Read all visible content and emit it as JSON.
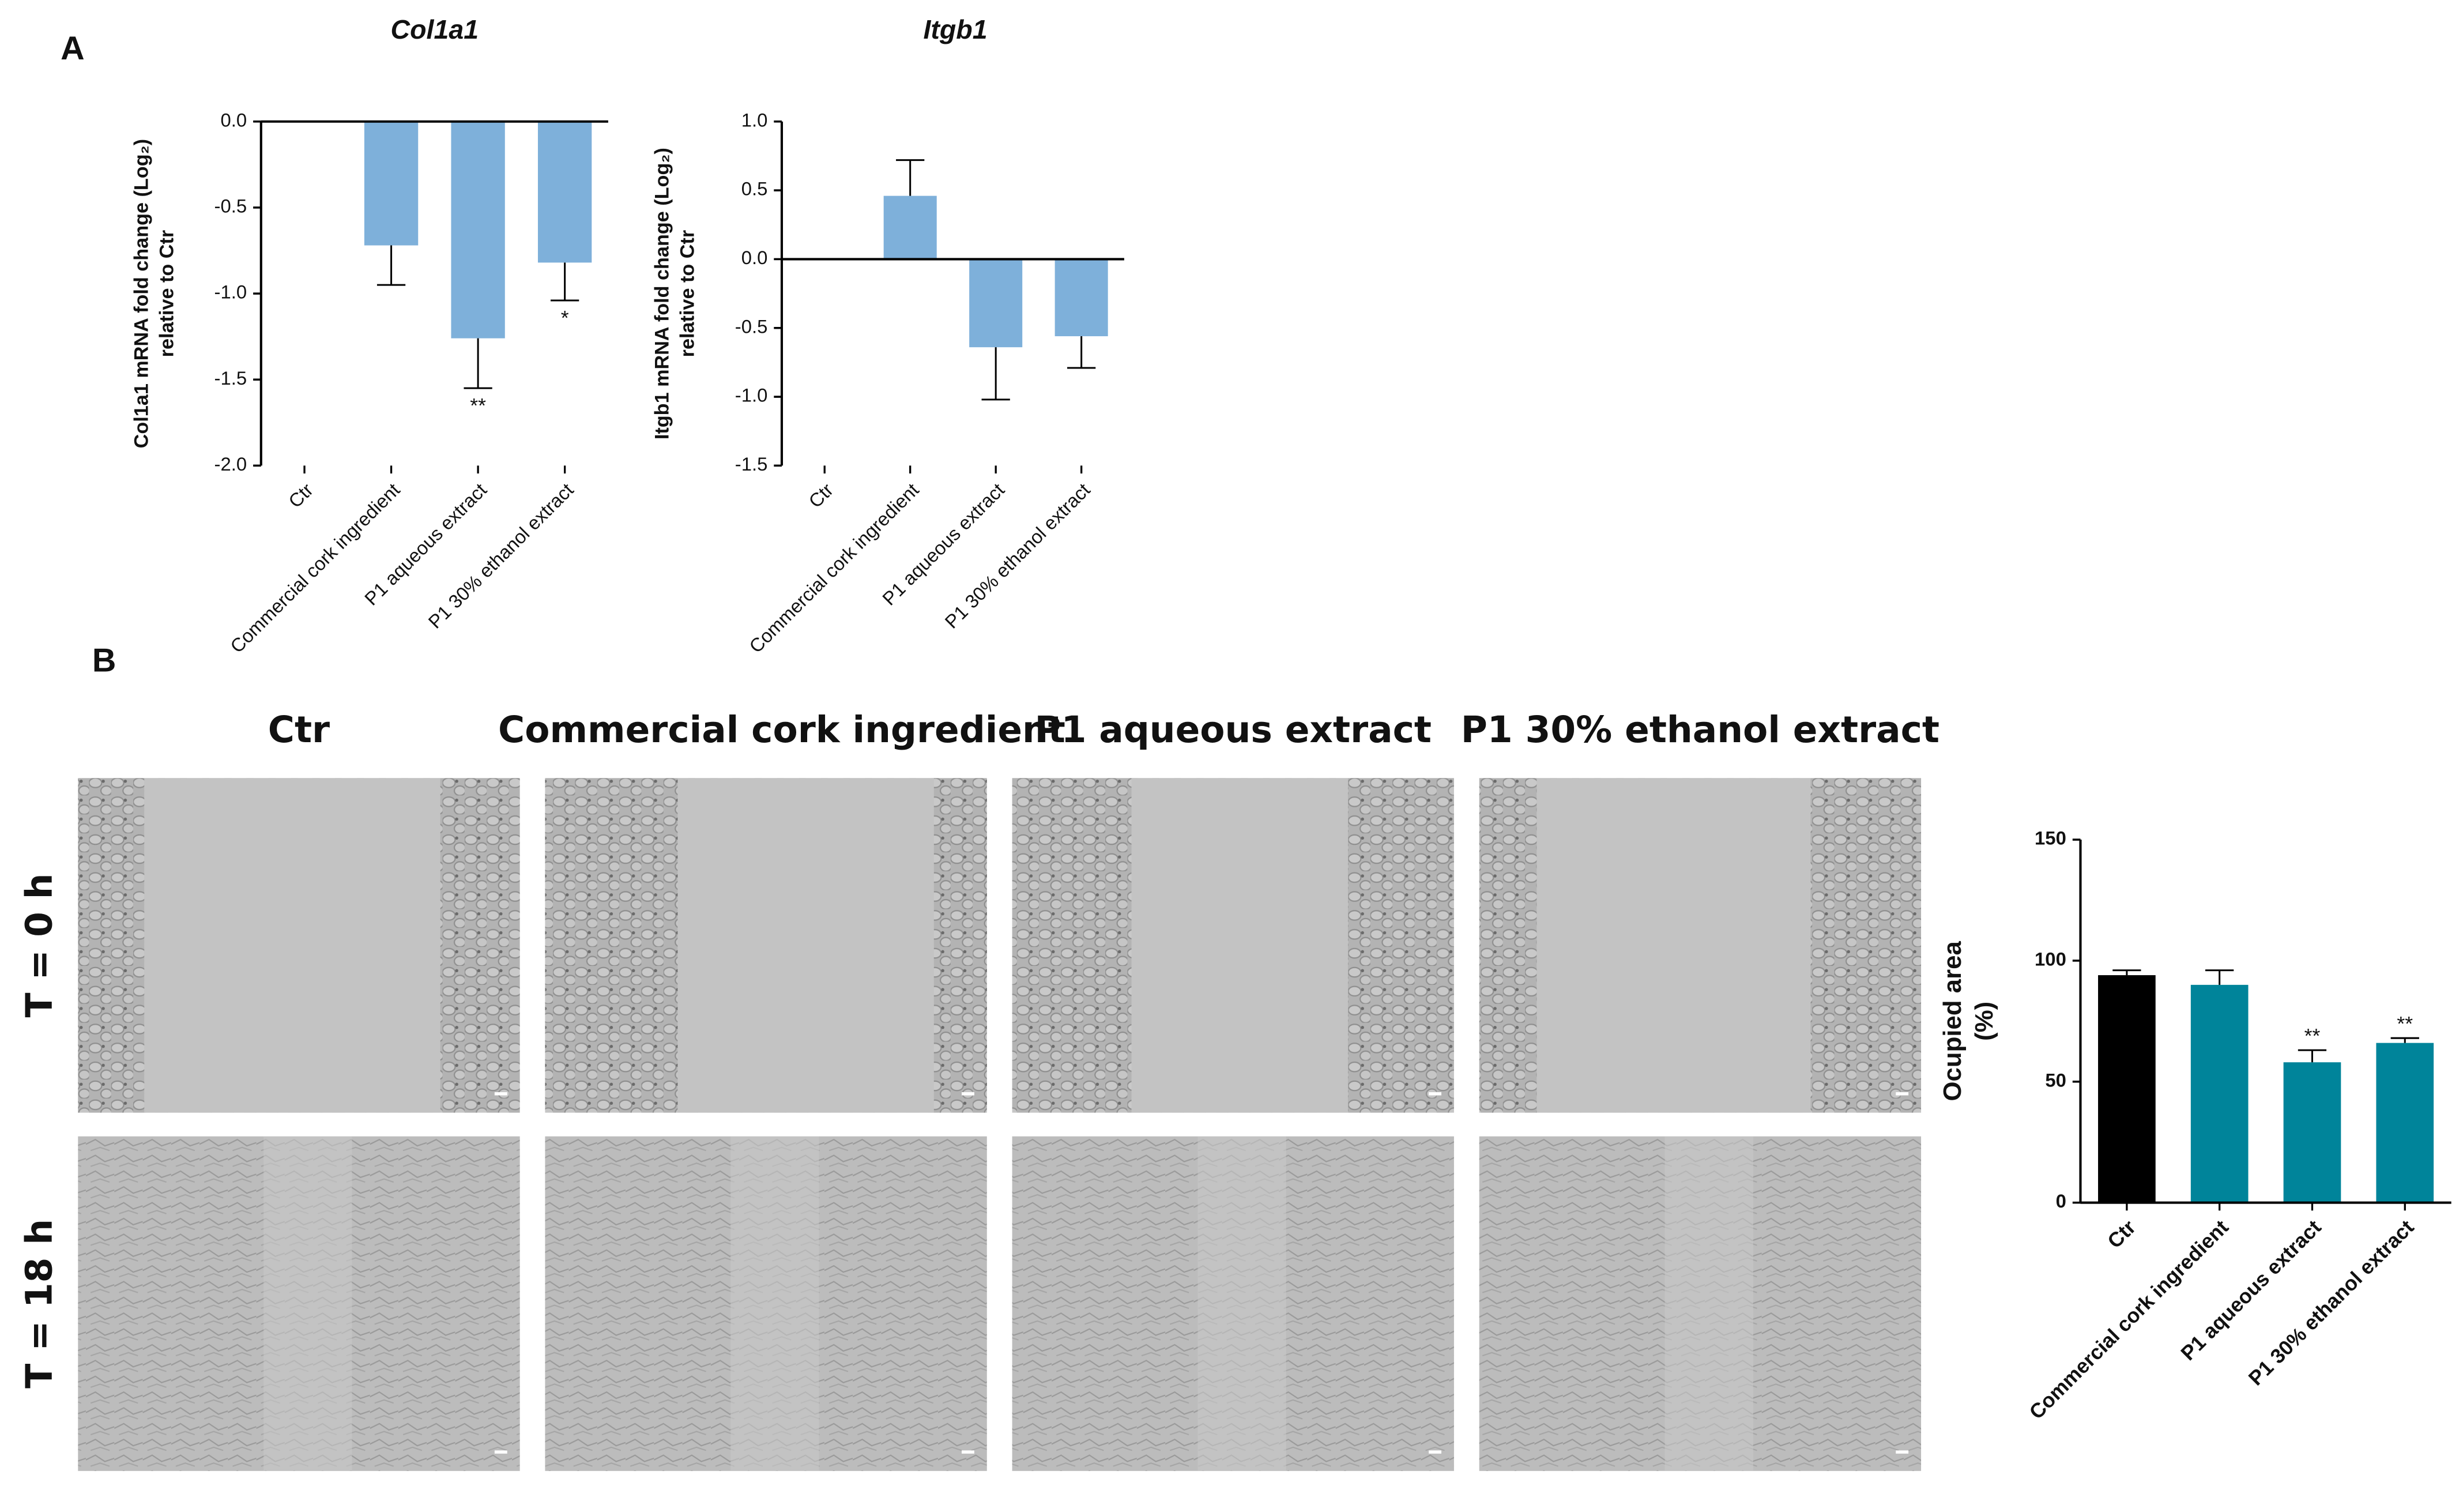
{
  "panel_labels": [
    "A",
    "B"
  ],
  "chart_data": [
    {
      "type": "bar",
      "title": "Col1a1",
      "y_label": [
        "Col1a1 mRNA fold change (Log₂)",
        "relative to Ctr"
      ],
      "categories": [
        "Ctr",
        "Commercial cork ingredient",
        "P1 aqueous extract",
        "P1 30% ethanol extract"
      ],
      "values": [
        0,
        -0.72,
        -1.26,
        -0.82
      ],
      "errors": [
        null,
        0.23,
        0.29,
        0.22
      ],
      "annotations": [
        null,
        null,
        "**",
        "*"
      ],
      "colors": [
        "#7eb0da",
        "#7eb0da",
        "#7eb0da",
        "#7eb0da"
      ],
      "ylim": [
        -2,
        0
      ],
      "yticks": [
        {
          "value": 0,
          "label": "0.0"
        },
        {
          "value": -0.5,
          "label": "-0.5"
        },
        {
          "value": -1,
          "label": "-1.0"
        },
        {
          "value": -1.5,
          "label": "-1.5"
        },
        {
          "value": -2,
          "label": "-2.0"
        }
      ]
    },
    {
      "type": "bar",
      "title": "Itgb1",
      "y_label": [
        "Itgb1 mRNA fold change (Log₂)",
        "relative to Ctr"
      ],
      "categories": [
        "Ctr",
        "Commercial cork ingredient",
        "P1 aqueous extract",
        "P1 30% ethanol extract"
      ],
      "values": [
        0,
        0.46,
        -0.64,
        -0.56
      ],
      "errors": [
        null,
        0.26,
        0.38,
        0.23
      ],
      "annotations": [
        null,
        null,
        null,
        null
      ],
      "colors": [
        "#7eb0da",
        "#7eb0da",
        "#7eb0da",
        "#7eb0da"
      ],
      "ylim": [
        -1.5,
        1
      ],
      "yticks": [
        {
          "value": 1,
          "label": "1.0"
        },
        {
          "value": 0.5,
          "label": "0.5"
        },
        {
          "value": 0,
          "label": "0.0"
        },
        {
          "value": -0.5,
          "label": "-0.5"
        },
        {
          "value": -1,
          "label": "-1.0"
        },
        {
          "value": -1.5,
          "label": "-1.5"
        }
      ]
    },
    {
      "type": "bar",
      "y_label": [
        "Ocupied area",
        "(%)"
      ],
      "categories": [
        "Ctr",
        "Commercial cork ingredient",
        "P1 aqueous extract",
        "P1 30% ethanol extract"
      ],
      "values": [
        94,
        90,
        58,
        66
      ],
      "errors": [
        2,
        6,
        5,
        2
      ],
      "annotations": [
        null,
        null,
        "**",
        "**"
      ],
      "colors": [
        "#000000",
        "#00849a",
        "#00849a",
        "#00849a"
      ],
      "ylim": [
        0,
        150
      ],
      "yticks": [
        0,
        50,
        100,
        150
      ]
    }
  ],
  "micrographs": {
    "columns": [
      "Ctr",
      "Commercial cork ingredient",
      "P1 aqueous extract",
      "P1 30% ethanol extract"
    ],
    "rows": [
      "T = 0 h",
      "T = 18 h"
    ]
  }
}
